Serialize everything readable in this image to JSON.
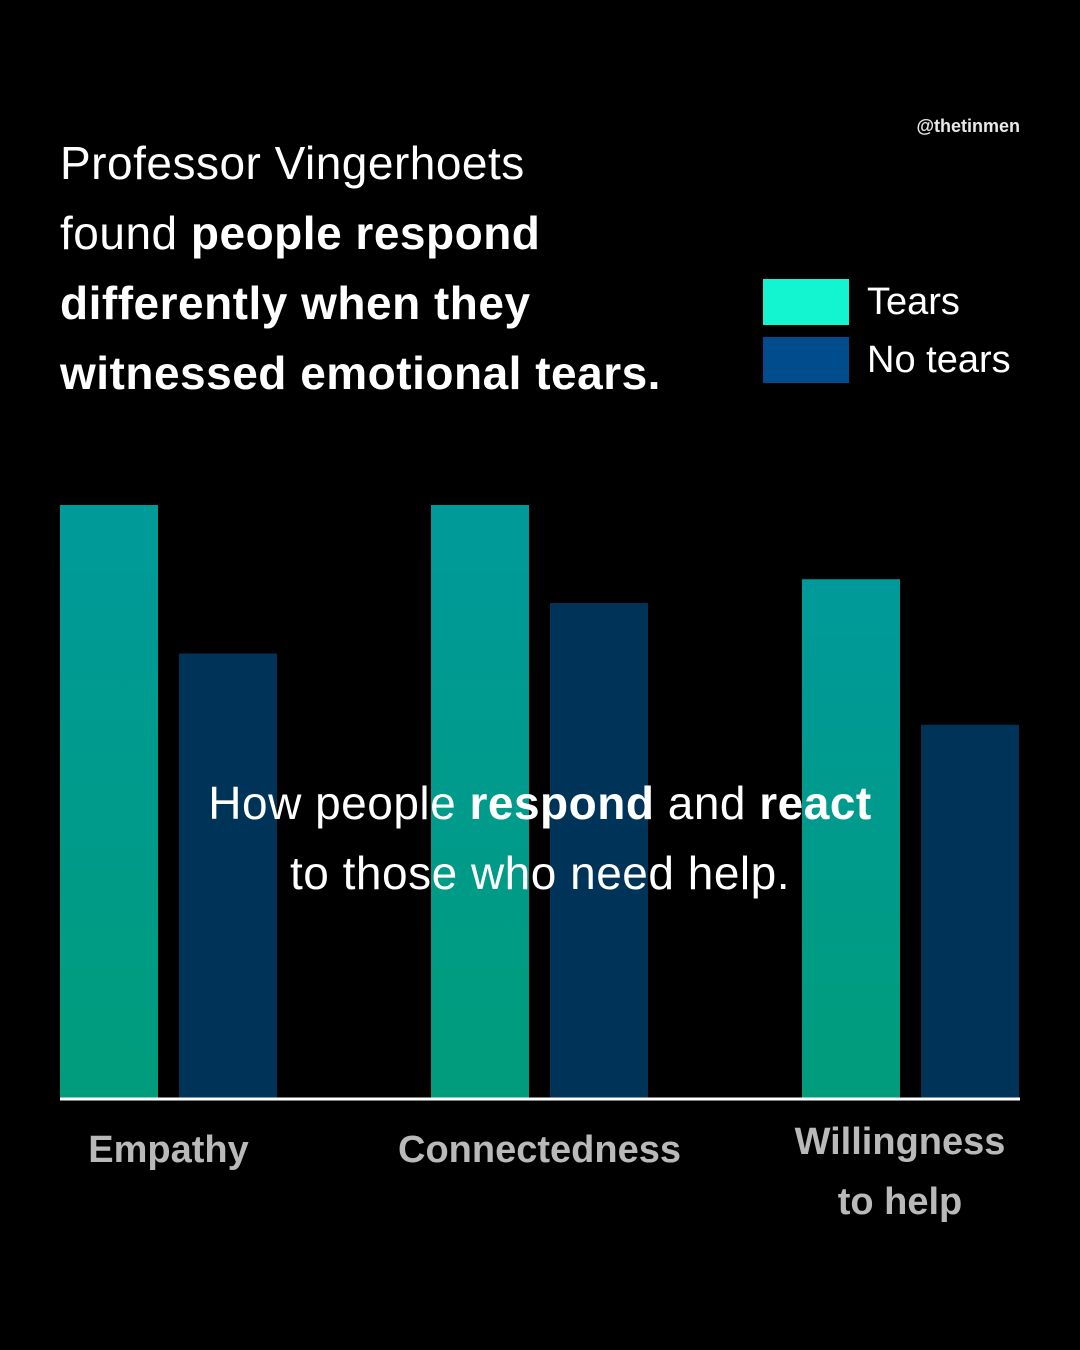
{
  "handle": "@thetinmen",
  "headline": {
    "line1": "Professor Vingerhoets",
    "line2_light": "found ",
    "line2_bold": "people respond",
    "line3_bold": "differently when they",
    "line4_bold": "witnessed emotional tears."
  },
  "overlay": {
    "part1": "How people ",
    "part2_bold": "respond",
    "part3": " and ",
    "part4_bold": "react",
    "line2": "to those who need help."
  },
  "colors": {
    "tears_top": "#009a9a",
    "tears_bottom": "#009c7c",
    "no_tears": "#003358",
    "legend_tears": "#13f5d0",
    "legend_no_tears": "#004c8c",
    "axis": "#ffffff"
  },
  "chart_data": {
    "type": "bar",
    "categories": [
      "Empathy",
      "Connectedness",
      "Willingness to help"
    ],
    "category_lines": [
      [
        "Empathy"
      ],
      [
        "Connectedness"
      ],
      [
        "Willingness",
        "to help"
      ]
    ],
    "series": [
      {
        "name": "Tears",
        "values": [
          100,
          100,
          87.5
        ]
      },
      {
        "name": "No tears",
        "values": [
          75,
          83.5,
          63
        ]
      }
    ],
    "ylim": [
      0,
      100
    ],
    "grid": false,
    "legend": "top-right",
    "title": "",
    "xlabel": "",
    "ylabel": ""
  }
}
